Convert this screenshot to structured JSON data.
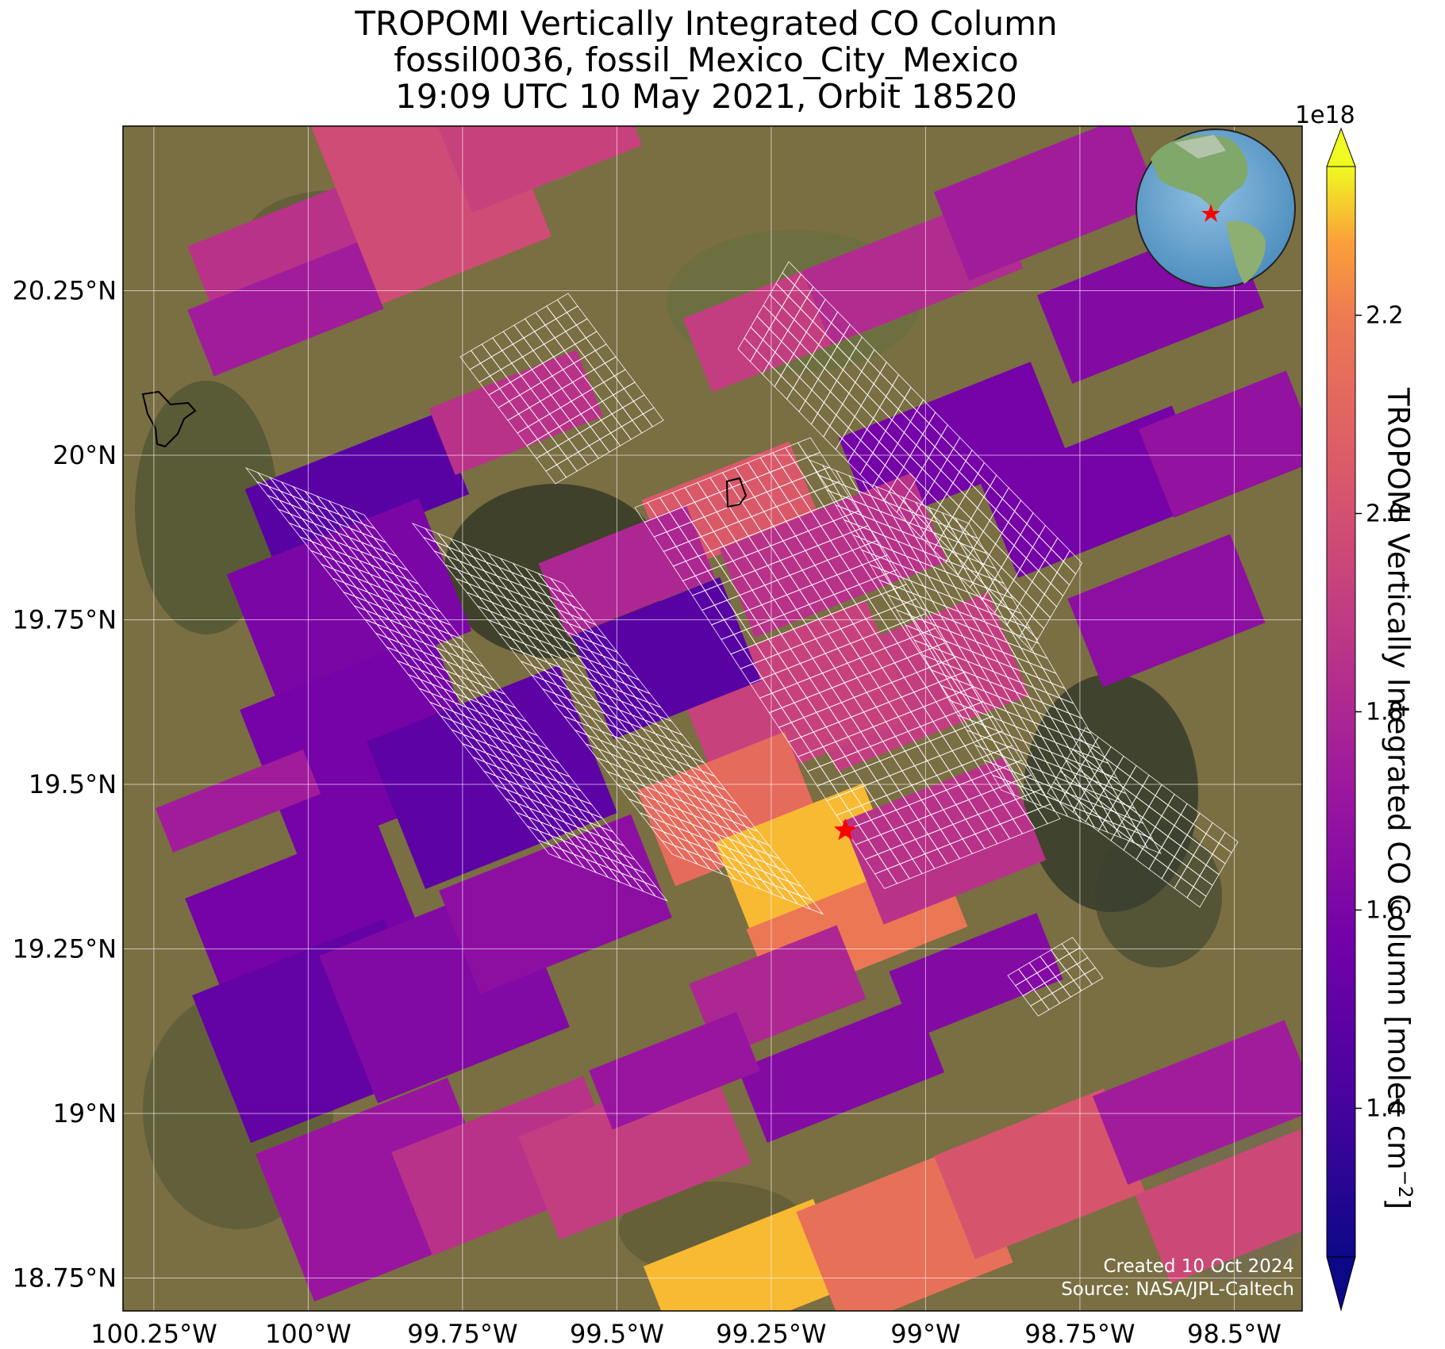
{
  "title": {
    "line1": "TROPOMI Vertically Integrated CO Column",
    "line2": "fossil0036, fossil_Mexico_City_Mexico",
    "line3": "19:09 UTC 10 May 2021, Orbit 18520"
  },
  "map": {
    "lon_range": [
      -100.3,
      -98.39
    ],
    "lat_range": [
      18.7,
      20.5
    ],
    "lon_ticks": [
      {
        "value": -100.25,
        "label": "100.25°W"
      },
      {
        "value": -100.0,
        "label": "100°W"
      },
      {
        "value": -99.75,
        "label": "99.75°W"
      },
      {
        "value": -99.5,
        "label": "99.5°W"
      },
      {
        "value": -99.25,
        "label": "99.25°W"
      },
      {
        "value": -99.0,
        "label": "99°W"
      },
      {
        "value": -98.75,
        "label": "98.75°W"
      },
      {
        "value": -98.5,
        "label": "98.5°W"
      }
    ],
    "lat_ticks": [
      {
        "value": 20.25,
        "label": "20.25°N"
      },
      {
        "value": 20.0,
        "label": "20°N"
      },
      {
        "value": 19.75,
        "label": "19.75°N"
      },
      {
        "value": 19.5,
        "label": "19.5°N"
      },
      {
        "value": 19.25,
        "label": "19.25°N"
      },
      {
        "value": 19.0,
        "label": "19°N"
      },
      {
        "value": 18.75,
        "label": "18.75°N"
      }
    ],
    "site_marker": {
      "name": "fossil_Mexico_City_Mexico",
      "lon": -99.13,
      "lat": 19.43,
      "color": "#ff0000"
    },
    "background": "satellite imagery (brown/green terrain)",
    "overlay": "TROPOMI CO pixels (plasma colormap) with white sounding footprint grid"
  },
  "colorbar": {
    "label": "TROPOMI Vertically Integrated CO Column [molec cm",
    "label_exp": "−2",
    "label_end": "]",
    "multiplier": "1e18",
    "colormap": "plasma",
    "range": [
      1.25,
      2.35
    ],
    "ticks": [
      "1.4",
      "1.6",
      "1.8",
      "2.0",
      "2.2"
    ],
    "extend": "both"
  },
  "credits": {
    "created": "Created 10 Oct 2024",
    "source": "Source: NASA/JPL-Caltech"
  },
  "globe_inset": {
    "highlight": "Mexico City",
    "marker_color": "#ff0000"
  }
}
